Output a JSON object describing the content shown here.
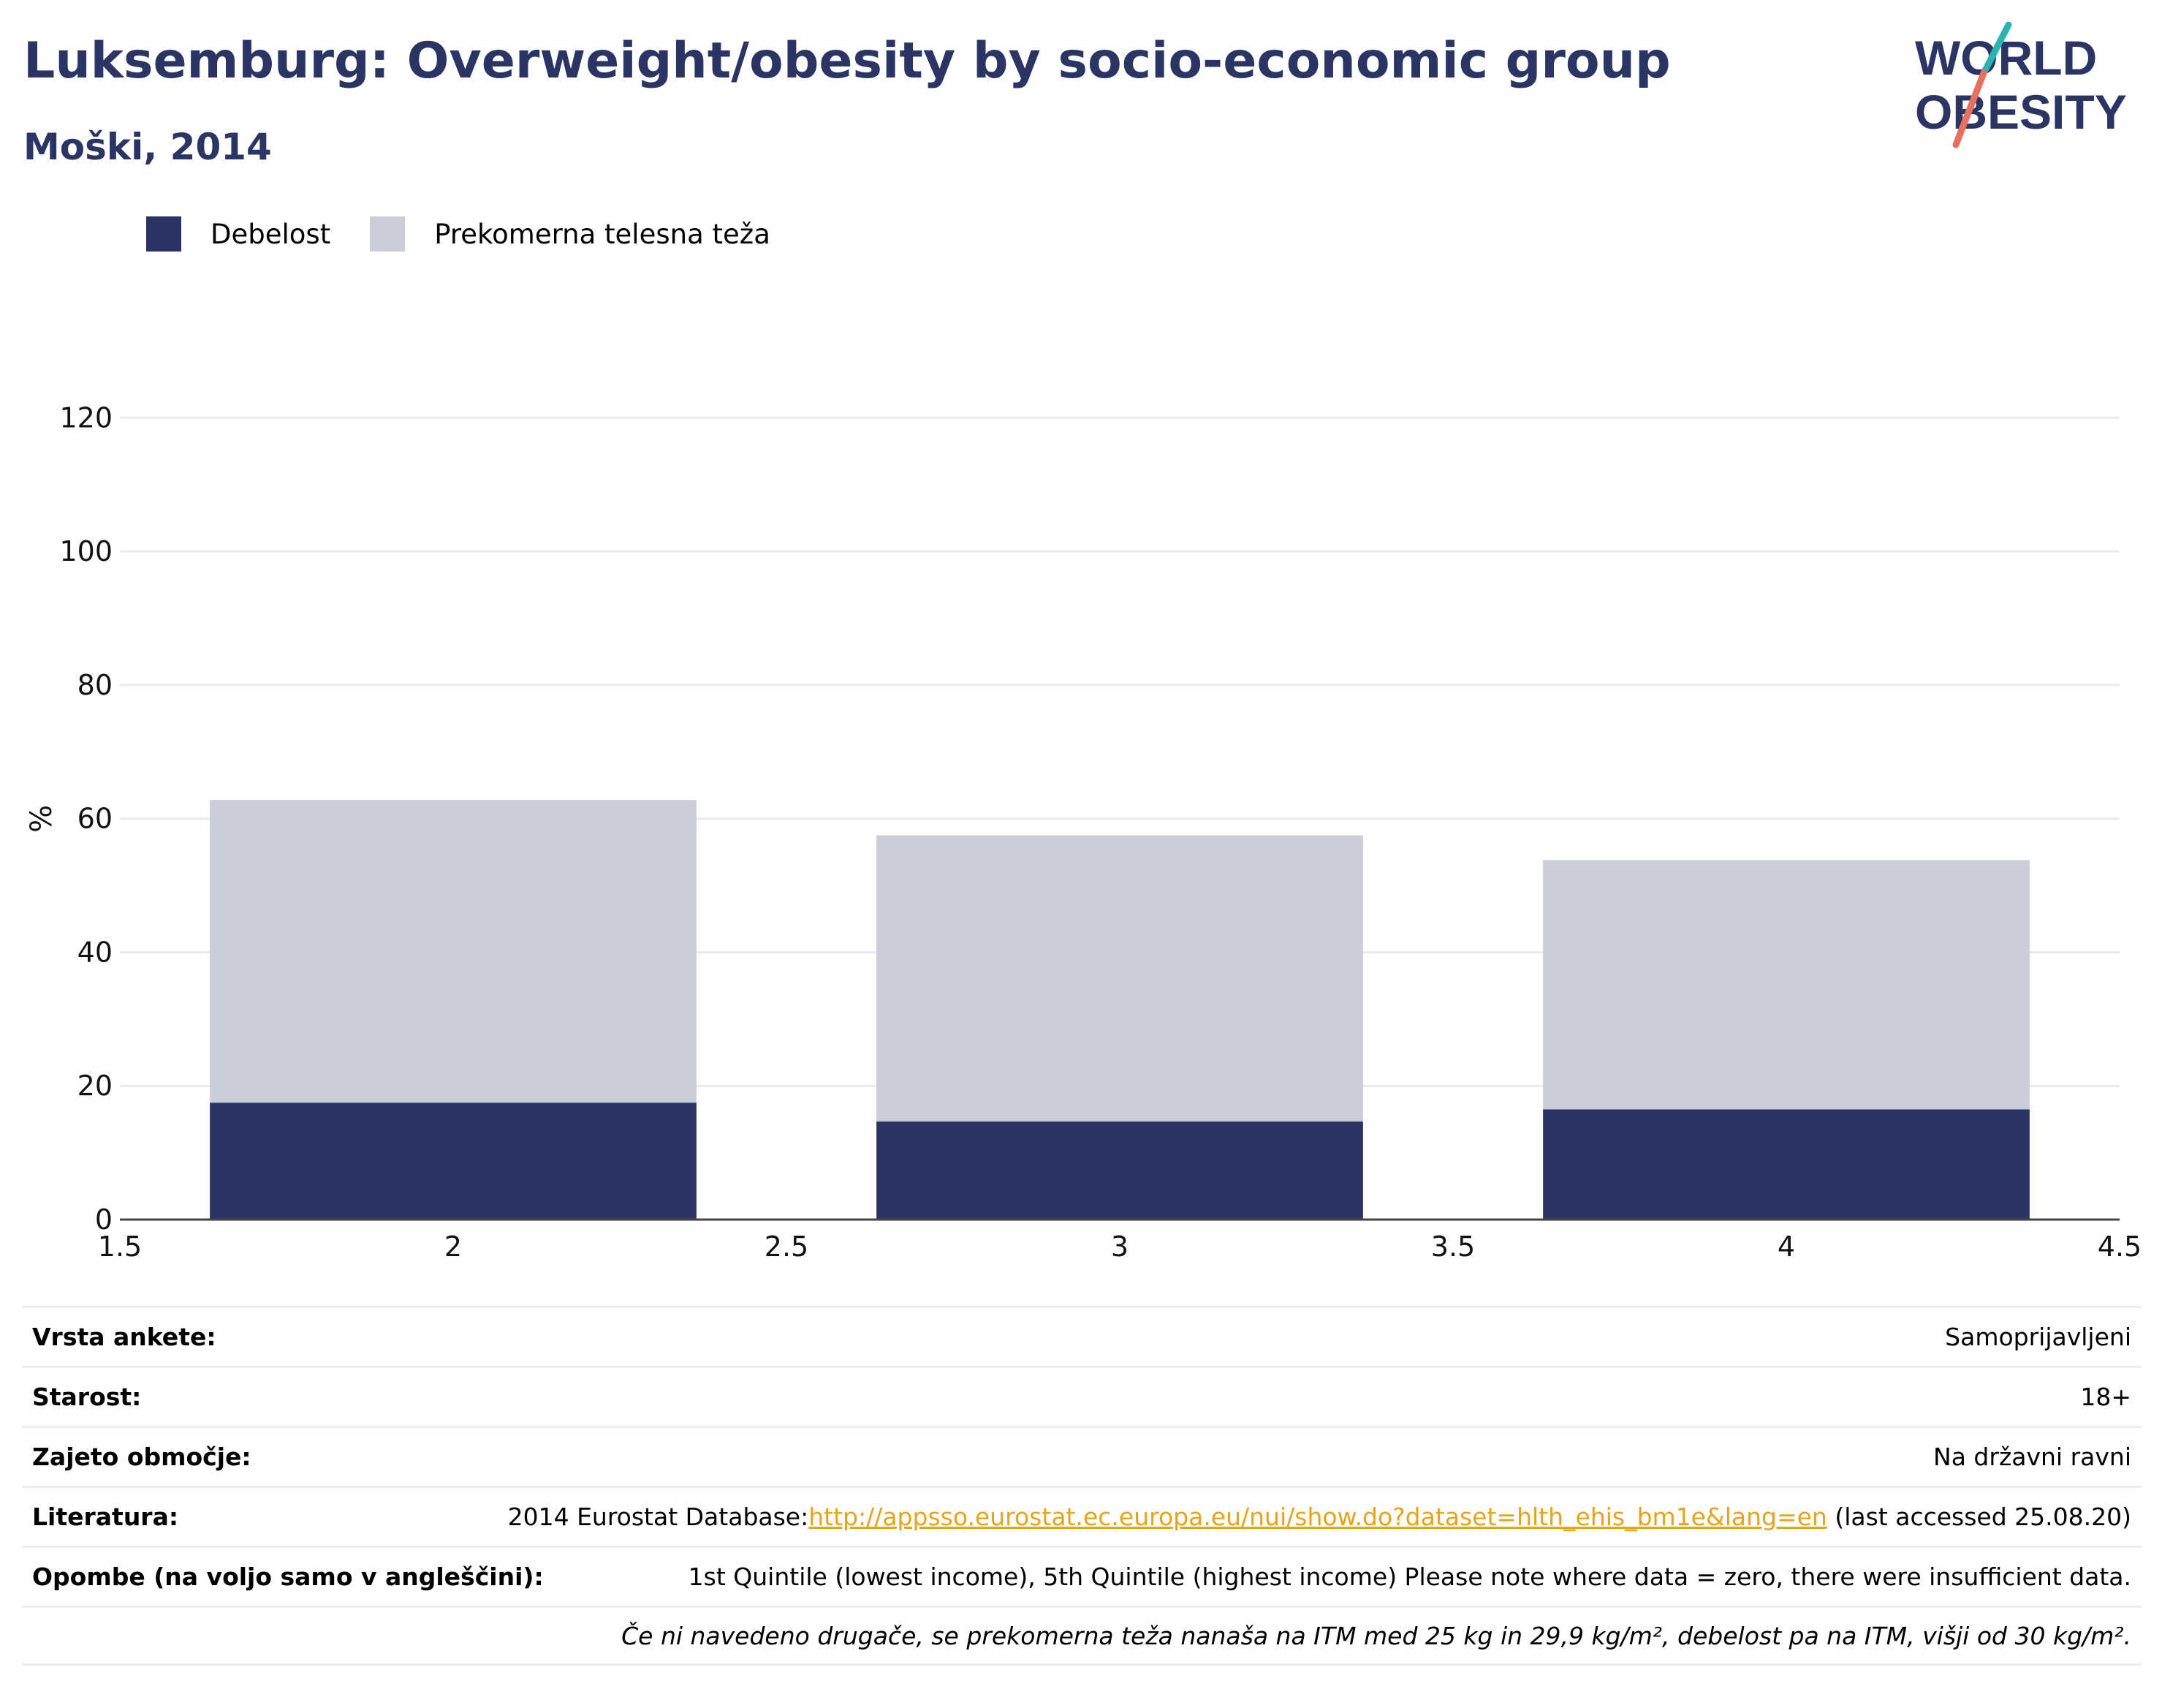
{
  "header": {
    "title": "Luksemburg: Overweight/obesity by socio-economic group",
    "subtitle": "Moški, 2014"
  },
  "logo": {
    "line1": "WORLD",
    "line2": "OBESITY",
    "accent_teal": "#2bb3b1",
    "accent_coral": "#e8705f"
  },
  "colors": {
    "obesity": "#2a3563",
    "overweight": "#cbcdd8",
    "text_dark": "#2a3563",
    "link": "#e8a417"
  },
  "chart_data": {
    "type": "bar",
    "stacked": true,
    "x": [
      2,
      3,
      4
    ],
    "series": [
      {
        "name": "Debelost",
        "values": [
          17.5,
          14.7,
          16.5
        ]
      },
      {
        "name": "Prekomerna telesna teža",
        "values": [
          45.3,
          42.8,
          37.3
        ]
      }
    ],
    "ylabel": "%",
    "xlim": [
      1.5,
      4.5
    ],
    "ylim": [
      0,
      130
    ],
    "yticks": [
      0,
      20,
      40,
      60,
      80,
      100,
      120
    ],
    "xticks": [
      "1.5",
      "2",
      "2.5",
      "3",
      "3.5",
      "4",
      "4.5"
    ],
    "grid": true,
    "legend_position": "top-left"
  },
  "info": {
    "survey_label": "Vrsta ankete:",
    "survey_value": "Samoprijavljeni",
    "age_label": "Starost:",
    "age_value": "18+",
    "coverage_label": "Zajeto območje:",
    "coverage_value": "Na državni ravni",
    "reference_label": "Literatura:",
    "reference_prefix": "2014 Eurostat Database:",
    "reference_link": "http://appsso.eurostat.ec.europa.eu/nui/show.do?dataset=hlth_ehis_bm1e&lang=en",
    "reference_suffix": " (last accessed 25.08.20)",
    "notes_label": "Opombe (na voljo samo v angleščini):",
    "notes_value": "1st Quintile (lowest income), 5th Quintile (highest income) Please note where data = zero, there were insufficient data.",
    "definition": "Če ni navedeno drugače, se prekomerna teža nanaša na ITM med 25 kg in 29,9 kg/m², debelost pa na ITM, višji od 30 kg/m²."
  }
}
